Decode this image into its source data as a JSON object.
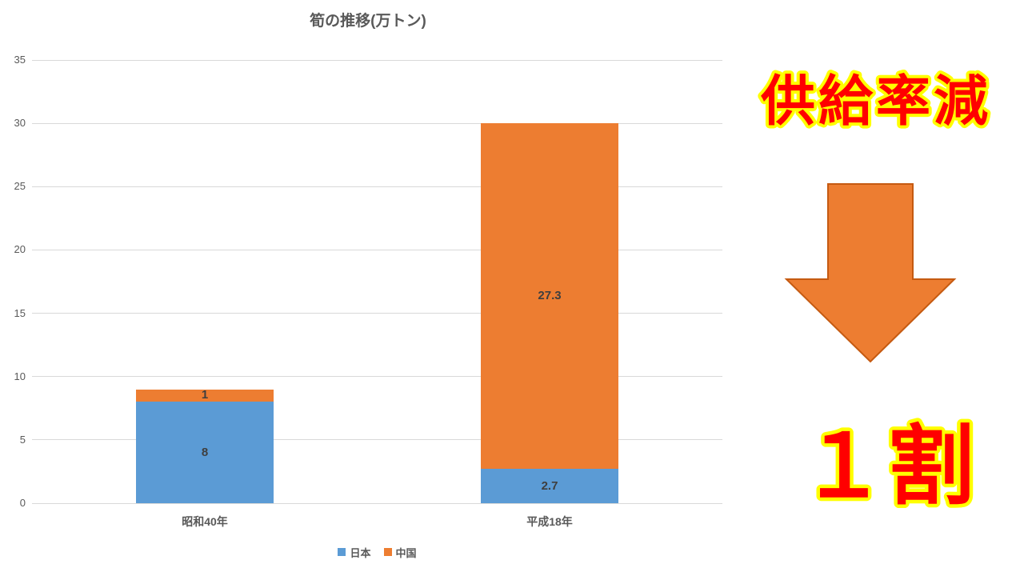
{
  "chart_data": {
    "type": "bar",
    "stacked": true,
    "title": "筍の推移(万トン)",
    "categories": [
      "昭和40年",
      "平成18年"
    ],
    "series": [
      {
        "name": "日本",
        "color": "#5b9bd5",
        "values": [
          8,
          2.7
        ]
      },
      {
        "name": "中国",
        "color": "#ed7d31",
        "values": [
          1,
          27.3
        ]
      }
    ],
    "data_labels": [
      [
        "8",
        "2.7"
      ],
      [
        "1",
        "27.3"
      ]
    ],
    "ylim": [
      0,
      35
    ],
    "yticks": [
      0,
      5,
      10,
      15,
      20,
      25,
      30,
      35
    ],
    "grid": true,
    "legend_position": "bottom"
  },
  "annotation": {
    "heading": "供給率減",
    "footer": "１割"
  },
  "colors": {
    "series_japan": "#5b9bd5",
    "series_china": "#ed7d31",
    "grid": "#d9d9d9",
    "axis_text": "#595959",
    "value_label": "#3f3f3f",
    "annotation_fill": "#ff0000",
    "annotation_outline": "#ffff00",
    "arrow_fill": "#ed7d31",
    "arrow_border": "#c55a11",
    "background": "#ffffff"
  }
}
